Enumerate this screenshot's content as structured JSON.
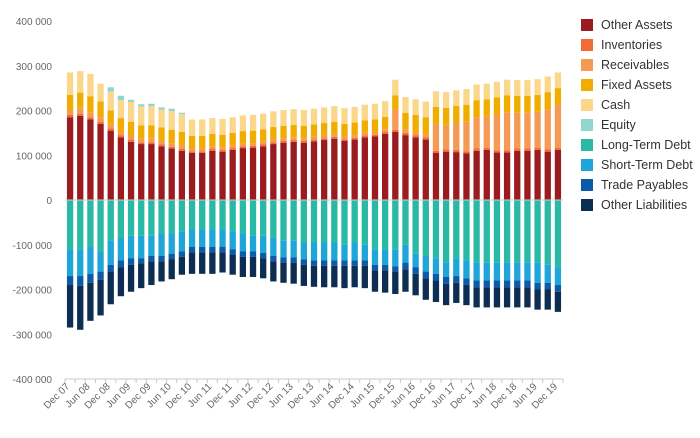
{
  "chart_data": {
    "type": "bar",
    "stacked": true,
    "title": "",
    "xlabel": "",
    "ylabel": "",
    "ylim": [
      -400000,
      400000
    ],
    "y_ticks": [
      "400 000",
      "300 000",
      "200 000",
      "100 000",
      "0",
      "-100 000",
      "-200 000",
      "-300 000",
      "-400 000"
    ],
    "legend_position": "right",
    "grid": false,
    "categories": [
      "Dec 07",
      "Mar 08",
      "Jun 08",
      "Sep 08",
      "Dec 08",
      "Mar 09",
      "Jun 09",
      "Sep 09",
      "Dec 09",
      "Mar 10",
      "Jun 10",
      "Sep 10",
      "Dec 10",
      "Mar 11",
      "Jun 11",
      "Sep 11",
      "Dec 11",
      "Mar 12",
      "Jun 12",
      "Sep 12",
      "Dec 12",
      "Mar 13",
      "Jun 13",
      "Sep 13",
      "Dec 13",
      "Mar 14",
      "Jun 14",
      "Sep 14",
      "Dec 14",
      "Mar 15",
      "Jun 15",
      "Sep 15",
      "Dec 15",
      "Mar 16",
      "Jun 16",
      "Sep 16",
      "Dec 16",
      "Mar 17",
      "Jun 17",
      "Sep 17",
      "Dec 17",
      "Mar 18",
      "Jun 18",
      "Sep 18",
      "Dec 18",
      "Mar 19",
      "Jun 19",
      "Sep 19",
      "Dec 19"
    ],
    "x_tick_labels": [
      "Dec 07",
      "Jun 08",
      "Dec 08",
      "Jun 09",
      "Dec 09",
      "Jun 10",
      "Dec 10",
      "Jun 11",
      "Dec 11",
      "Jun 12",
      "Dec 12",
      "Jun 13",
      "Dec 13",
      "Jun 14",
      "Dec 14",
      "Jun 15",
      "Dec 15",
      "Jun 16",
      "Dec 16",
      "Jun 17",
      "Dec 17",
      "Jun 18",
      "Dec 18",
      "Jun 19",
      "Dec 19"
    ],
    "series": [
      {
        "name": "Other Assets",
        "color": "#9b1c1f",
        "values": [
          185000,
          188000,
          180000,
          170000,
          155000,
          140000,
          130000,
          125000,
          125000,
          120000,
          115000,
          110000,
          105000,
          105000,
          110000,
          108000,
          112000,
          116000,
          117000,
          120000,
          125000,
          128000,
          130000,
          128000,
          131000,
          134000,
          137000,
          132000,
          135000,
          140000,
          142000,
          148000,
          152000,
          145000,
          140000,
          135000,
          105000,
          108000,
          107000,
          104000,
          110000,
          112000,
          106000,
          106000,
          110000,
          110000,
          112000,
          108000,
          112000
        ]
      },
      {
        "name": "Inventories",
        "color": "#f26b35",
        "values": [
          5000,
          5000,
          5000,
          5000,
          5000,
          5000,
          5000,
          4000,
          4000,
          4000,
          4000,
          4000,
          4000,
          4000,
          4000,
          4000,
          4000,
          4000,
          4000,
          4000,
          4000,
          4000,
          4000,
          4000,
          4000,
          4000,
          4000,
          4000,
          4000,
          4000,
          4000,
          4000,
          5000,
          5000,
          5000,
          5000,
          5000,
          5000,
          5000,
          5000,
          5000,
          5000,
          5000,
          5000,
          5000,
          5000,
          5000,
          5000,
          5000
        ]
      },
      {
        "name": "Receivables",
        "color": "#f59a54",
        "values": [
          10000,
          12000,
          10000,
          10000,
          8000,
          8000,
          8000,
          8000,
          8000,
          8000,
          8000,
          8000,
          6000,
          6000,
          6000,
          6000,
          6000,
          6000,
          6000,
          6000,
          6000,
          6000,
          6000,
          6000,
          6000,
          6000,
          6000,
          6000,
          6000,
          6000,
          6000,
          6000,
          45000,
          7000,
          7000,
          7000,
          60000,
          55000,
          60000,
          66000,
          70000,
          70000,
          80000,
          85000,
          80000,
          80000,
          80000,
          90000,
          95000
        ]
      },
      {
        "name": "Fixed Assets",
        "color": "#f0ad00",
        "values": [
          35000,
          35000,
          37000,
          35000,
          32000,
          30000,
          32000,
          30000,
          30000,
          30000,
          30000,
          30000,
          28000,
          28000,
          28000,
          28000,
          28000,
          28000,
          28000,
          28000,
          28000,
          28000,
          28000,
          28000,
          28000,
          28000,
          28000,
          28000,
          28000,
          28000,
          28000,
          28000,
          32000,
          38000,
          38000,
          38000,
          38000,
          38000,
          38000,
          38000,
          38000,
          38000,
          38000,
          38000,
          38000,
          38000,
          38000,
          38000,
          38000
        ]
      },
      {
        "name": "Cash",
        "color": "#fbd78c",
        "values": [
          50000,
          48000,
          50000,
          40000,
          42000,
          40000,
          44000,
          42000,
          43000,
          40000,
          42000,
          40000,
          37000,
          37000,
          35000,
          35000,
          35000,
          35000,
          35000,
          35000,
          35000,
          35000,
          35000,
          35000,
          35000,
          35000,
          35000,
          35000,
          35000,
          35000,
          35000,
          35000,
          35000,
          35000,
          35000,
          35000,
          35000,
          35000,
          35000,
          35000,
          35000,
          35000,
          35000,
          35000,
          35000,
          35000,
          35000,
          35000,
          35000
        ]
      },
      {
        "name": "Equity",
        "color": "#8fd6cf",
        "values": [
          0,
          0,
          0,
          0,
          10000,
          10000,
          5000,
          5000,
          5000,
          5000,
          5000,
          3000,
          0,
          0,
          0,
          0,
          0,
          0,
          0,
          0,
          0,
          0,
          0,
          0,
          0,
          0,
          0,
          0,
          0,
          0,
          0,
          0,
          0,
          0,
          0,
          0,
          0,
          0,
          0,
          0,
          0,
          0,
          0,
          0,
          0,
          0,
          0,
          0,
          0
        ]
      },
      {
        "name": "Long-Term Debt",
        "color": "#2ab9a5",
        "values": [
          -110000,
          -110000,
          -105000,
          -115000,
          -90000,
          -85000,
          -80000,
          -80000,
          -80000,
          -75000,
          -75000,
          -70000,
          -65000,
          -65000,
          -65000,
          -65000,
          -70000,
          -75000,
          -80000,
          -80000,
          -85000,
          -90000,
          -90000,
          -95000,
          -95000,
          -95000,
          -95000,
          -100000,
          -95000,
          -100000,
          -110000,
          -110000,
          -110000,
          -100000,
          -120000,
          -125000,
          -130000,
          -140000,
          -130000,
          -135000,
          -140000,
          -140000,
          -140000,
          -140000,
          -140000,
          -140000,
          -140000,
          -145000,
          -150000
        ]
      },
      {
        "name": "Short-Term Debt",
        "color": "#1ea6d9",
        "values": [
          -60000,
          -60000,
          -60000,
          -45000,
          -55000,
          -50000,
          -50000,
          -50000,
          -45000,
          -50000,
          -45000,
          -45000,
          -40000,
          -40000,
          -40000,
          -40000,
          -40000,
          -40000,
          -35000,
          -38000,
          -40000,
          -38000,
          -38000,
          -38000,
          -40000,
          -40000,
          -40000,
          -35000,
          -40000,
          -35000,
          -35000,
          -35000,
          -38000,
          -40000,
          -30000,
          -35000,
          -35000,
          -32000,
          -40000,
          -40000,
          -40000,
          -40000,
          -40000,
          -40000,
          -40000,
          -40000,
          -45000,
          -40000,
          -40000
        ]
      },
      {
        "name": "Trade Payables",
        "color": "#0b5ba8",
        "values": [
          -20000,
          -22000,
          -20000,
          -18000,
          -15000,
          -15000,
          -15000,
          -12000,
          -12000,
          -12000,
          -12000,
          -12000,
          -12000,
          -12000,
          -12000,
          -12000,
          -12000,
          -12000,
          -12000,
          -12000,
          -12000,
          -12000,
          -12000,
          -12000,
          -12000,
          -12000,
          -12000,
          -12000,
          -12000,
          -12000,
          -12000,
          -12000,
          -12000,
          -15000,
          -15000,
          -15000,
          -15000,
          -15000,
          -15000,
          -15000,
          -15000,
          -15000,
          -15000,
          -15000,
          -15000,
          -15000,
          -15000,
          -15000,
          -15000
        ]
      },
      {
        "name": "Other Liabilities",
        "color": "#0d2e52",
        "values": [
          -95000,
          -98000,
          -85000,
          -80000,
          -73000,
          -65000,
          -60000,
          -55000,
          -53000,
          -45000,
          -45000,
          -40000,
          -48000,
          -48000,
          -48000,
          -45000,
          -45000,
          -45000,
          -45000,
          -45000,
          -45000,
          -45000,
          -47000,
          -47000,
          -47000,
          -48000,
          -48000,
          -50000,
          -48000,
          -50000,
          -48000,
          -50000,
          -50000,
          -50000,
          -48000,
          -48000,
          -48000,
          -48000,
          -45000,
          -45000,
          -45000,
          -45000,
          -45000,
          -45000,
          -45000,
          -45000,
          -45000,
          -45000,
          -45000
        ]
      }
    ]
  }
}
